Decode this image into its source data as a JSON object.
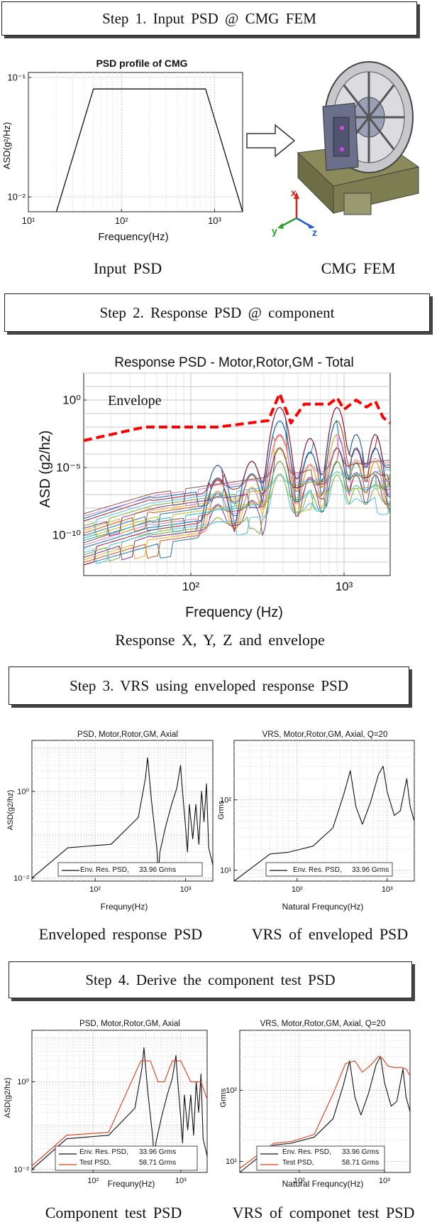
{
  "steps": [
    {
      "label": "Step 1. Input PSD @ CMG FEM"
    },
    {
      "label": "Step 2. Response PSD @ component"
    },
    {
      "label": "Step 3. VRS using enveloped response PSD"
    },
    {
      "label": "Step 4. Derive the component test PSD"
    }
  ],
  "captions": {
    "input_psd": "Input PSD",
    "cmg_fem": "CMG FEM",
    "response": "Response X, Y, Z and envelope",
    "env_resp_psd": "Enveloped response PSD",
    "vrs_env": "VRS of enveloped PSD",
    "comp_test_psd": "Component test PSD",
    "vrs_comp": "VRS of componet test PSD"
  },
  "fem": {
    "axis_x": "x",
    "axis_y": "y",
    "axis_z": "z",
    "colors": {
      "x": "#e0201a",
      "y": "#2aa02a",
      "z": "#1f5fd0"
    }
  },
  "chart_data": [
    {
      "id": "input_psd",
      "type": "line",
      "title": "PSD profile of CMG",
      "xlabel": "Frequency(Hz)",
      "ylabel": "ASD(g²/Hz)",
      "xlim": [
        10,
        2000
      ],
      "ylim": [
        0.0075,
        0.11
      ],
      "xscale": "log",
      "yscale": "log",
      "xticks": [
        "10¹",
        "10²",
        "10³"
      ],
      "yticks": [
        "10⁻²",
        "10⁻¹"
      ],
      "series": [
        {
          "name": "PSD",
          "x": [
            20,
            50,
            800,
            2000
          ],
          "y": [
            0.0075,
            0.08,
            0.08,
            0.0075
          ],
          "color": "#111"
        }
      ]
    },
    {
      "id": "response",
      "type": "line",
      "title": "Response PSD - Motor,Rotor,GM - Total",
      "xlabel": "Frequency (Hz)",
      "ylabel": "ASD (g2/hz)",
      "xlim": [
        20,
        2000
      ],
      "ylim": [
        1e-13,
        100
      ],
      "xscale": "log",
      "yscale": "log",
      "xticks": [
        "10²",
        "10³"
      ],
      "yticks": [
        "10⁰",
        "10⁻⁵",
        "10⁻¹⁰"
      ],
      "annotation": "Envelope",
      "envelope": {
        "x": [
          20,
          50,
          150,
          320,
          380,
          450,
          550,
          700,
          800,
          900,
          1000,
          1200,
          1400,
          1600,
          1800,
          2000
        ],
        "y": [
          0.001,
          0.01,
          0.01,
          0.03,
          3.0,
          0.02,
          0.5,
          0.5,
          0.5,
          1.5,
          0.2,
          1.0,
          0.3,
          0.8,
          0.05,
          0.02
        ],
        "color": "#ff0000"
      },
      "series_count": 22
    },
    {
      "id": "env_psd",
      "type": "line",
      "title": "PSD, Motor,Rotor,GM, Axial",
      "xlabel": "Frequny(Hz)",
      "ylabel": "ASD(g2/hz)",
      "xlim": [
        20,
        2000
      ],
      "ylim": [
        0.0085,
        15
      ],
      "xscale": "log",
      "yscale": "log",
      "xticks": [
        "10²",
        "10³"
      ],
      "yticks": [
        "10⁻²",
        "10⁰"
      ],
      "series": [
        {
          "name": "Env. Res. PSD,",
          "rms": "33.96 Grms",
          "color": "#111",
          "x": [
            20,
            50,
            150,
            300,
            360,
            380,
            420,
            480,
            500,
            520,
            600,
            700,
            800,
            880,
            900,
            950,
            1000,
            1050,
            1100,
            1200,
            1300,
            1400,
            1500,
            1600,
            1700,
            1800,
            2000
          ],
          "y": [
            0.01,
            0.05,
            0.06,
            0.25,
            2.0,
            6.0,
            0.6,
            0.05,
            0.012,
            0.04,
            0.15,
            0.5,
            1.2,
            4.0,
            2.0,
            0.5,
            0.15,
            0.04,
            0.5,
            0.08,
            0.5,
            0.06,
            1.0,
            0.2,
            1.5,
            0.05,
            0.02
          ]
        }
      ]
    },
    {
      "id": "vrs_env",
      "type": "line",
      "title": "VRS, Motor,Rotor,GM, Axial, Q=20",
      "xlabel": "Natural Frequncy(Hz)",
      "ylabel": "Grms",
      "xlim": [
        20,
        2000
      ],
      "ylim": [
        7,
        700
      ],
      "xscale": "log",
      "yscale": "log",
      "xticks": [
        "10²",
        "10³"
      ],
      "yticks": [
        "10¹",
        "10²"
      ],
      "series": [
        {
          "name": "Env. Res. PSD,",
          "rms": "33.96 Grms",
          "color": "#111",
          "x": [
            20,
            50,
            80,
            150,
            250,
            330,
            390,
            450,
            530,
            650,
            800,
            900,
            1000,
            1200,
            1400,
            1650,
            1800,
            2000
          ],
          "y": [
            7,
            17,
            18,
            22,
            40,
            120,
            260,
            80,
            45,
            90,
            230,
            300,
            130,
            60,
            70,
            200,
            80,
            50
          ]
        }
      ]
    },
    {
      "id": "comp_psd",
      "type": "line",
      "title": "PSD, Motor,Rotor,GM, Axial",
      "xlabel": "Frequny(Hz)",
      "ylabel": "ASD(g2/hz)",
      "xlim": [
        20,
        2000
      ],
      "ylim": [
        0.0085,
        15
      ],
      "xscale": "log",
      "yscale": "log",
      "xticks": [
        "10²",
        "10³"
      ],
      "yticks": [
        "10⁻²",
        "10⁰"
      ],
      "series": [
        {
          "name": "Env. Res. PSD,",
          "rms": "33.96 Grms",
          "color": "#111",
          "x": [
            20,
            50,
            150,
            300,
            360,
            380,
            420,
            480,
            500,
            520,
            600,
            700,
            800,
            880,
            900,
            950,
            1000,
            1050,
            1100,
            1200,
            1300,
            1400,
            1500,
            1600,
            1700,
            1800,
            2000
          ],
          "y": [
            0.01,
            0.05,
            0.06,
            0.25,
            2.0,
            6.0,
            0.6,
            0.05,
            0.012,
            0.04,
            0.15,
            0.5,
            1.2,
            4.0,
            2.0,
            0.5,
            0.15,
            0.04,
            0.5,
            0.08,
            0.5,
            0.06,
            1.0,
            0.2,
            1.5,
            0.05,
            0.02
          ]
        },
        {
          "name": "Test PSD,",
          "rms": "58.71 Grms",
          "color": "#e03c1a",
          "x": [
            20,
            50,
            150,
            350,
            450,
            550,
            650,
            800,
            1000,
            1300,
            1700,
            2000
          ],
          "y": [
            0.012,
            0.06,
            0.07,
            3.0,
            3.0,
            1.0,
            1.0,
            3.0,
            3.0,
            1.0,
            1.0,
            0.4
          ]
        }
      ]
    },
    {
      "id": "comp_vrs",
      "type": "line",
      "title": "VRS, Motor,Rotor,GM, Axial, Q=20",
      "xlabel": "Natural Frequncy(Hz)",
      "ylabel": "Grms",
      "xlim": [
        20,
        2000
      ],
      "ylim": [
        7,
        700
      ],
      "xscale": "log",
      "yscale": "log",
      "xticks": [
        "10²",
        "10³"
      ],
      "yticks": [
        "10¹",
        "10²"
      ],
      "series": [
        {
          "name": "Env. Res. PSD,",
          "rms": "33.96 Grms",
          "color": "#111",
          "x": [
            20,
            50,
            80,
            150,
            250,
            330,
            390,
            450,
            530,
            650,
            800,
            900,
            1000,
            1200,
            1400,
            1650,
            1800,
            2000
          ],
          "y": [
            7,
            17,
            18,
            22,
            40,
            120,
            260,
            80,
            45,
            90,
            230,
            300,
            130,
            60,
            70,
            200,
            80,
            50
          ]
        },
        {
          "name": "Test PSD,",
          "rms": "58.71 Grms",
          "color": "#e03c1a",
          "x": [
            20,
            50,
            80,
            150,
            250,
            350,
            450,
            550,
            700,
            850,
            950,
            1100,
            1300,
            1600,
            1800,
            2000
          ],
          "y": [
            8,
            18,
            19,
            24,
            90,
            240,
            260,
            180,
            230,
            300,
            280,
            220,
            210,
            210,
            200,
            160
          ]
        }
      ]
    }
  ]
}
